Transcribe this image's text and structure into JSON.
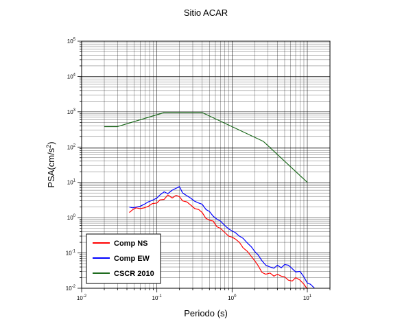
{
  "chart_data": {
    "type": "line",
    "title": "Sitio ACAR",
    "xlabel": "Periodo (s)",
    "ylabel": {
      "base": "PSA(cm/s",
      "exponent": "2",
      "close": ")"
    },
    "xscale": "log",
    "yscale": "log",
    "xlim": [
      0.01,
      20
    ],
    "ylim": [
      0.01,
      100000
    ],
    "grid": true,
    "legend_position": "bottom-left",
    "x_ticks": [
      {
        "base": "10",
        "exp": "-2"
      },
      {
        "base": "10",
        "exp": "-1"
      },
      {
        "base": "10",
        "exp": "0"
      },
      {
        "base": "10",
        "exp": "1"
      }
    ],
    "y_ticks": [
      {
        "base": "10",
        "exp": "-2"
      },
      {
        "base": "10",
        "exp": "-1"
      },
      {
        "base": "10",
        "exp": "0"
      },
      {
        "base": "10",
        "exp": "1"
      },
      {
        "base": "10",
        "exp": "2"
      },
      {
        "base": "10",
        "exp": "3"
      },
      {
        "base": "10",
        "exp": "4"
      },
      {
        "base": "10",
        "exp": "5"
      }
    ],
    "series": [
      {
        "name": "Comp NS",
        "color": "#ff0000",
        "points": [
          [
            0.043,
            1.4
          ],
          [
            0.048,
            1.7
          ],
          [
            0.053,
            1.9
          ],
          [
            0.06,
            1.8
          ],
          [
            0.068,
            1.9
          ],
          [
            0.077,
            2.1
          ],
          [
            0.087,
            2.5
          ],
          [
            0.1,
            2.6
          ],
          [
            0.11,
            3.2
          ],
          [
            0.125,
            3.3
          ],
          [
            0.14,
            4.4
          ],
          [
            0.16,
            3.6
          ],
          [
            0.18,
            4.3
          ],
          [
            0.2,
            3.9
          ],
          [
            0.22,
            3.0
          ],
          [
            0.25,
            2.8
          ],
          [
            0.28,
            2.3
          ],
          [
            0.32,
            1.8
          ],
          [
            0.36,
            1.7
          ],
          [
            0.4,
            1.4
          ],
          [
            0.45,
            0.95
          ],
          [
            0.5,
            0.85
          ],
          [
            0.56,
            0.8
          ],
          [
            0.63,
            0.55
          ],
          [
            0.7,
            0.5
          ],
          [
            0.8,
            0.38
          ],
          [
            0.9,
            0.3
          ],
          [
            1.0,
            0.28
          ],
          [
            1.1,
            0.25
          ],
          [
            1.25,
            0.2
          ],
          [
            1.4,
            0.14
          ],
          [
            1.6,
            0.11
          ],
          [
            1.8,
            0.08
          ],
          [
            2.0,
            0.06
          ],
          [
            2.2,
            0.045
          ],
          [
            2.5,
            0.028
          ],
          [
            2.8,
            0.025
          ],
          [
            3.2,
            0.027
          ],
          [
            3.6,
            0.022
          ],
          [
            4.0,
            0.025
          ],
          [
            4.5,
            0.022
          ],
          [
            5.0,
            0.021
          ],
          [
            5.6,
            0.017
          ],
          [
            6.3,
            0.016
          ],
          [
            7.0,
            0.02
          ],
          [
            8.0,
            0.017
          ],
          [
            9.0,
            0.013
          ],
          [
            10.0,
            0.0095
          ]
        ]
      },
      {
        "name": "Comp EW",
        "color": "#0000ff",
        "points": [
          [
            0.043,
            2.0
          ],
          [
            0.048,
            1.9
          ],
          [
            0.053,
            2.0
          ],
          [
            0.06,
            2.1
          ],
          [
            0.068,
            2.4
          ],
          [
            0.077,
            2.8
          ],
          [
            0.087,
            3.1
          ],
          [
            0.1,
            3.6
          ],
          [
            0.11,
            4.4
          ],
          [
            0.125,
            5.4
          ],
          [
            0.14,
            4.8
          ],
          [
            0.16,
            6.0
          ],
          [
            0.18,
            6.8
          ],
          [
            0.2,
            7.6
          ],
          [
            0.22,
            5.0
          ],
          [
            0.25,
            4.2
          ],
          [
            0.28,
            3.6
          ],
          [
            0.32,
            2.9
          ],
          [
            0.36,
            2.6
          ],
          [
            0.4,
            2.4
          ],
          [
            0.45,
            1.7
          ],
          [
            0.5,
            1.5
          ],
          [
            0.56,
            1.1
          ],
          [
            0.63,
            0.9
          ],
          [
            0.7,
            0.8
          ],
          [
            0.8,
            0.6
          ],
          [
            0.9,
            0.48
          ],
          [
            1.0,
            0.42
          ],
          [
            1.1,
            0.38
          ],
          [
            1.25,
            0.3
          ],
          [
            1.4,
            0.26
          ],
          [
            1.6,
            0.19
          ],
          [
            1.8,
            0.15
          ],
          [
            2.0,
            0.11
          ],
          [
            2.2,
            0.09
          ],
          [
            2.5,
            0.06
          ],
          [
            2.8,
            0.045
          ],
          [
            3.2,
            0.04
          ],
          [
            3.6,
            0.037
          ],
          [
            4.0,
            0.045
          ],
          [
            4.5,
            0.038
          ],
          [
            5.0,
            0.047
          ],
          [
            5.6,
            0.045
          ],
          [
            6.3,
            0.036
          ],
          [
            7.0,
            0.029
          ],
          [
            8.0,
            0.03
          ],
          [
            9.0,
            0.021
          ],
          [
            10.0,
            0.014
          ],
          [
            11.0,
            0.013
          ],
          [
            12.5,
            0.01
          ]
        ]
      },
      {
        "name": "CSCR 2010",
        "color": "#1e6b1e",
        "points": [
          [
            0.02,
            380
          ],
          [
            0.03,
            380
          ],
          [
            0.125,
            950
          ],
          [
            0.4,
            950
          ],
          [
            2.6,
            145
          ],
          [
            10.0,
            10
          ]
        ]
      }
    ]
  }
}
